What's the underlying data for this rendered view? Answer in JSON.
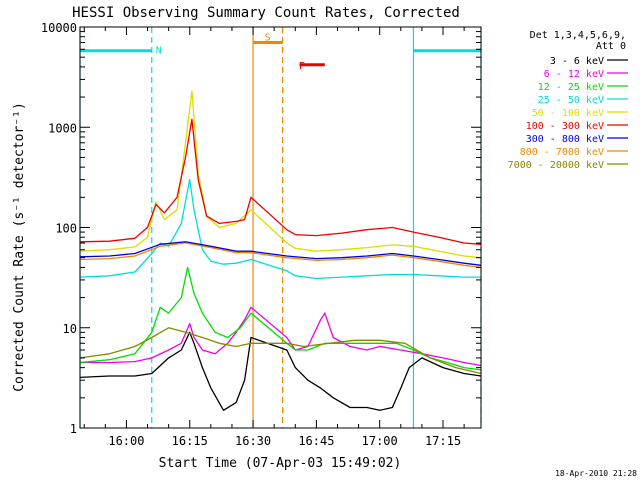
{
  "chart_data": {
    "type": "line",
    "title": "HESSI Observing Summary Count Rates, Corrected",
    "xlabel": "Start Time (07-Apr-03 15:49:02)",
    "ylabel": "Corrected Count Rate (s⁻¹ detector⁻¹)",
    "yscale": "log",
    "xlim": [
      "15:49",
      "17:24"
    ],
    "ylim": [
      1,
      10000
    ],
    "x_ticks": [
      "16:00",
      "16:15",
      "16:30",
      "16:45",
      "17:00",
      "17:15"
    ],
    "y_ticks": [
      "1",
      "10",
      "100",
      "1000",
      "10000"
    ],
    "footer_date": "18-Apr-2010 21:28",
    "legend": {
      "position": "right",
      "header": [
        "Det 1,3,4,5,6,9,",
        "Att 0"
      ]
    },
    "flags": [
      {
        "label": "N",
        "color": "#00dddd",
        "segments": [
          [
            "15:49",
            "16:06"
          ],
          [
            "17:08",
            "17:24"
          ]
        ],
        "y": 5800
      },
      {
        "label": "S",
        "color": "#ee8800",
        "segments": [
          [
            "16:30",
            "16:37"
          ]
        ],
        "y": 7000
      },
      {
        "label": "F",
        "color": "#ee0000",
        "segments": [
          [
            "16:41",
            "16:47"
          ]
        ],
        "y": 4200
      }
    ],
    "markers": [
      {
        "time": "15:49",
        "color": "#00dddd"
      },
      {
        "time": "16:06",
        "color": "#00dddd",
        "dashed": true
      },
      {
        "time": "16:30",
        "color": "#ee8800"
      },
      {
        "time": "16:37",
        "color": "#ee8800",
        "dashed": true
      },
      {
        "time": "17:08",
        "color": "#00dddd"
      },
      {
        "time": "17:24",
        "color": "#00dddd",
        "dashed": true
      }
    ],
    "series": [
      {
        "name": "3 - 6 keV",
        "color": "#000000",
        "x": [
          "15:49",
          "15:56",
          "16:02",
          "16:06",
          "16:10",
          "16:13",
          "16:15",
          "16:16",
          "16:18",
          "16:20",
          "16:23",
          "16:26",
          "16:28",
          "16:29.5",
          "16:38",
          "16:40",
          "16:43",
          "16:46",
          "16:49",
          "16:53",
          "16:57",
          "17:00",
          "17:03",
          "17:05",
          "17:07",
          "17:10",
          "17:15",
          "17:20",
          "17:24"
        ],
        "y": [
          3.2,
          3.3,
          3.3,
          3.5,
          5,
          6,
          9,
          7,
          4,
          2.5,
          1.5,
          1.8,
          3,
          8,
          6,
          4,
          3,
          2.5,
          2,
          1.6,
          1.6,
          1.5,
          1.6,
          2.5,
          4,
          5,
          4,
          3.5,
          3.3
        ]
      },
      {
        "name": "6 - 12 keV",
        "color": "#ee00ee",
        "x": [
          "15:49",
          "15:56",
          "16:02",
          "16:06",
          "16:10",
          "16:13",
          "16:15",
          "16:16",
          "16:18",
          "16:21",
          "16:24",
          "16:26",
          "16:28",
          "16:29.5",
          "16:38",
          "16:40",
          "16:43",
          "16:46",
          "16:47",
          "16:49",
          "16:53",
          "16:57",
          "17:00",
          "17:05",
          "17:10",
          "17:15",
          "17:20",
          "17:24"
        ],
        "y": [
          4.5,
          4.5,
          4.6,
          5,
          6,
          7,
          11,
          8,
          6,
          5.5,
          7,
          9,
          12,
          16,
          8,
          6,
          6.5,
          12,
          14,
          8,
          6.5,
          6,
          6.5,
          6,
          5.5,
          5,
          4.5,
          4.2
        ]
      },
      {
        "name": "12 - 25 keV",
        "color": "#00dd00",
        "x": [
          "15:49",
          "15:56",
          "16:02",
          "16:06",
          "16:08",
          "16:10",
          "16:13",
          "16:14.5",
          "16:16",
          "16:18",
          "16:21",
          "16:24",
          "16:27",
          "16:29.5",
          "16:38",
          "16:40",
          "16:43",
          "16:47",
          "16:51",
          "16:55",
          "17:00",
          "17:04",
          "17:08",
          "17:12",
          "17:16",
          "17:20",
          "17:24"
        ],
        "y": [
          4.5,
          4.8,
          5.5,
          9,
          16,
          14,
          20,
          40,
          22,
          14,
          9,
          8,
          10,
          14,
          7,
          6,
          6,
          7,
          7,
          7,
          7,
          7,
          6,
          5,
          4.5,
          4,
          3.8
        ]
      },
      {
        "name": "25 - 50 keV",
        "color": "#00dddd",
        "x": [
          "15:49",
          "15:56",
          "16:02",
          "16:06",
          "16:08",
          "16:10",
          "16:13",
          "16:15",
          "16:16",
          "16:18",
          "16:20",
          "16:23",
          "16:26",
          "16:29.5",
          "16:38",
          "16:40",
          "16:45",
          "16:51",
          "16:57",
          "17:03",
          "17:08",
          "17:14",
          "17:20",
          "17:24"
        ],
        "y": [
          32,
          33,
          36,
          55,
          70,
          65,
          110,
          300,
          150,
          60,
          46,
          43,
          44,
          48,
          37,
          33,
          31,
          32,
          33,
          34,
          34,
          33,
          32,
          32
        ]
      },
      {
        "name": "50 - 100 keV",
        "color": "#dddd00",
        "x": [
          "15:49",
          "15:56",
          "16:02",
          "16:05",
          "16:07",
          "16:09",
          "16:12",
          "16:14",
          "16:15.5",
          "16:17",
          "16:19",
          "16:22",
          "16:26",
          "16:29.5",
          "16:38",
          "16:40",
          "16:45",
          "16:51",
          "16:57",
          "17:03",
          "17:08",
          "17:14",
          "17:20",
          "17:24"
        ],
        "y": [
          58,
          60,
          64,
          80,
          180,
          120,
          150,
          700,
          2300,
          350,
          130,
          100,
          110,
          150,
          70,
          62,
          58,
          60,
          63,
          67,
          65,
          58,
          52,
          50
        ]
      },
      {
        "name": "100 - 300 keV",
        "color": "#ee0000",
        "x": [
          "15:49",
          "15:56",
          "16:02",
          "16:05",
          "16:07",
          "16:09",
          "16:12",
          "16:14",
          "16:15.5",
          "16:17",
          "16:19",
          "16:22",
          "16:26",
          "16:28",
          "16:29.5",
          "16:38",
          "16:40",
          "16:45",
          "16:51",
          "16:57",
          "17:03",
          "17:08",
          "17:14",
          "17:20",
          "17:24"
        ],
        "y": [
          72,
          73,
          78,
          100,
          170,
          140,
          200,
          500,
          1200,
          300,
          130,
          110,
          115,
          120,
          200,
          95,
          85,
          83,
          88,
          95,
          100,
          90,
          80,
          70,
          68
        ]
      },
      {
        "name": "300 - 800 keV",
        "color": "#0000dd",
        "x": [
          "15:49",
          "15:56",
          "16:02",
          "16:08",
          "16:14",
          "16:20",
          "16:26",
          "16:29.5",
          "16:38",
          "16:45",
          "16:51",
          "16:57",
          "17:03",
          "17:08",
          "17:14",
          "17:20",
          "17:24"
        ],
        "y": [
          51,
          52,
          55,
          68,
          72,
          65,
          58,
          58,
          52,
          49,
          50,
          52,
          55,
          52,
          48,
          44,
          42
        ]
      },
      {
        "name": "800 - 7000 keV",
        "color": "#ee8800",
        "x": [
          "15:49",
          "15:56",
          "16:02",
          "16:08",
          "16:14",
          "16:20",
          "16:26",
          "16:29.5",
          "16:38",
          "16:45",
          "16:51",
          "16:57",
          "17:03",
          "17:08",
          "17:14",
          "17:20",
          "17:24"
        ],
        "y": [
          48,
          49,
          52,
          65,
          70,
          63,
          56,
          56,
          50,
          47,
          48,
          50,
          53,
          50,
          46,
          42,
          40
        ]
      },
      {
        "name": "7000 - 20000 keV",
        "color": "#888800",
        "x": [
          "15:49",
          "15:56",
          "16:02",
          "16:06",
          "16:10",
          "16:14",
          "16:18",
          "16:22",
          "16:26",
          "16:29.5",
          "16:38",
          "16:42",
          "16:48",
          "16:54",
          "17:00",
          "17:06",
          "17:12",
          "17:18",
          "17:24"
        ],
        "y": [
          5,
          5.5,
          6.5,
          8,
          10,
          9,
          8,
          7,
          6.5,
          7,
          7,
          6.5,
          7,
          7.5,
          7.5,
          7,
          5,
          4,
          3.5
        ]
      }
    ]
  }
}
